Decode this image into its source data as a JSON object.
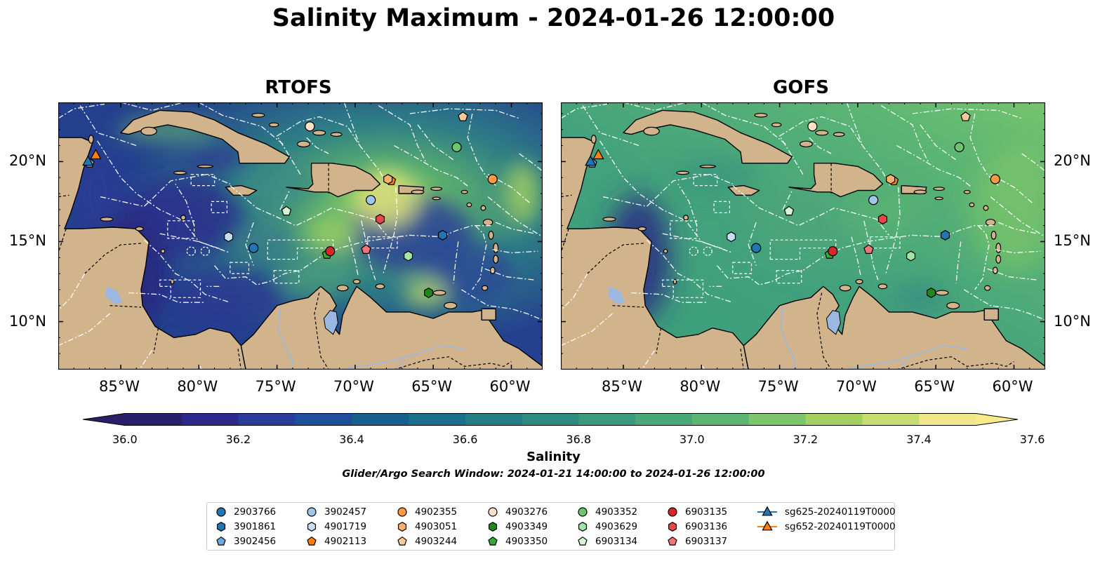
{
  "title": "Salinity Maximum - 2024-01-26 12:00:00",
  "panels": [
    {
      "title": "RTOFS"
    },
    {
      "title": "GOFS"
    }
  ],
  "x_ticks": [
    "85°W",
    "80°W",
    "75°W",
    "70°W",
    "65°W",
    "60°W"
  ],
  "y_ticks": [
    "20°N",
    "15°N",
    "10°N"
  ],
  "colorbar": {
    "label": "Salinity",
    "tick_labels": [
      "36.0",
      "36.2",
      "36.4",
      "36.6",
      "36.8",
      "37.0",
      "37.2",
      "37.4",
      "37.6"
    ],
    "colors": [
      "#2a1f6b",
      "#2b2a8c",
      "#2a3c9b",
      "#1f4f9c",
      "#16608e",
      "#1a6f8b",
      "#247e86",
      "#2e8b82",
      "#3a9a7d",
      "#4aa878",
      "#5cb671",
      "#7ec46a",
      "#a3d05f",
      "#c9dc6f",
      "#f0e68a"
    ]
  },
  "search_window": "Glider/Argo Search Window: 2024-01-21 14:00:00 to 2024-01-26 12:00:00",
  "legend": [
    {
      "label": "2903766",
      "marker": "circle",
      "color": "#1f77b4"
    },
    {
      "label": "3901861",
      "marker": "hexagon",
      "color": "#1f77b4"
    },
    {
      "label": "3902456",
      "marker": "pentagon",
      "color": "#6fa8dc"
    },
    {
      "label": "3902457",
      "marker": "circle",
      "color": "#9ec7ea"
    },
    {
      "label": "4901719",
      "marker": "hexagon",
      "color": "#c6ddf4"
    },
    {
      "label": "4902113",
      "marker": "pentagon",
      "color": "#ff7f0e"
    },
    {
      "label": "4902355",
      "marker": "circle",
      "color": "#fd9a43"
    },
    {
      "label": "4903051",
      "marker": "hexagon",
      "color": "#fdb16b"
    },
    {
      "label": "4903244",
      "marker": "pentagon",
      "color": "#fdc99a"
    },
    {
      "label": "4903276",
      "marker": "circle",
      "color": "#fde0c5"
    },
    {
      "label": "4903349",
      "marker": "hexagon",
      "color": "#1a8a1a"
    },
    {
      "label": "4903350",
      "marker": "pentagon",
      "color": "#36a836"
    },
    {
      "label": "4903352",
      "marker": "circle",
      "color": "#6cc66c"
    },
    {
      "label": "4903629",
      "marker": "hexagon",
      "color": "#a6e3a6"
    },
    {
      "label": "6903134",
      "marker": "pentagon",
      "color": "#d4f5d4"
    },
    {
      "label": "6903135",
      "marker": "circle",
      "color": "#d62728"
    },
    {
      "label": "6903136",
      "marker": "hexagon",
      "color": "#e8474a"
    },
    {
      "label": "6903137",
      "marker": "pentagon",
      "color": "#f07579"
    },
    {
      "label": "sg625-20240119T0000",
      "marker": "triangle-line",
      "color": "#1f77b4"
    },
    {
      "label": "sg652-20240119T0000",
      "marker": "triangle-line",
      "color": "#ff7f0e"
    }
  ],
  "floats": [
    {
      "id": "2903766",
      "lon": -76.5,
      "lat": 14.6
    },
    {
      "id": "3901861",
      "lon": -64.4,
      "lat": 15.4
    },
    {
      "id": "3902456",
      "lon": -87.0,
      "lat": 19.9
    },
    {
      "id": "3902457",
      "lon": -69.0,
      "lat": 17.6
    },
    {
      "id": "4901719",
      "lon": -78.1,
      "lat": 15.3
    },
    {
      "id": "4902113",
      "lon": -67.7,
      "lat": 18.8
    },
    {
      "id": "4902355",
      "lon": -61.2,
      "lat": 18.9
    },
    {
      "id": "4903051",
      "lon": -67.9,
      "lat": 18.9
    },
    {
      "id": "4903244",
      "lon": -63.1,
      "lat": 22.8
    },
    {
      "id": "4903276",
      "lon": -72.9,
      "lat": 22.2
    },
    {
      "id": "4903349",
      "lon": -65.3,
      "lat": 11.8
    },
    {
      "id": "4903350",
      "lon": -71.8,
      "lat": 14.2
    },
    {
      "id": "4903352",
      "lon": -63.5,
      "lat": 20.9
    },
    {
      "id": "4903629",
      "lon": -66.6,
      "lat": 14.1
    },
    {
      "id": "6903134",
      "lon": -74.4,
      "lat": 16.9
    },
    {
      "id": "6903135",
      "lon": -71.6,
      "lat": 14.4
    },
    {
      "id": "6903136",
      "lon": -68.4,
      "lat": 16.4
    },
    {
      "id": "6903137",
      "lon": -69.3,
      "lat": 14.5
    },
    {
      "id": "sg625-20240119T0000",
      "lon": -87.1,
      "lat": 20.0
    },
    {
      "id": "sg652-20240119T0000",
      "lon": -86.6,
      "lat": 20.4
    }
  ]
}
